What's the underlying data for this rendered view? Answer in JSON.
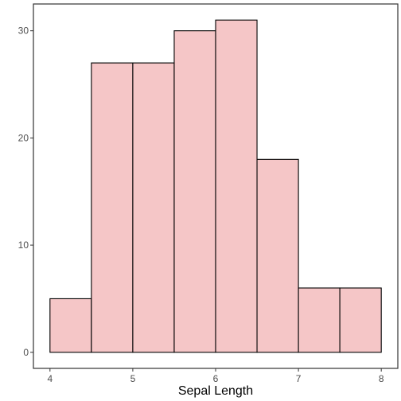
{
  "chart_data": {
    "type": "bar",
    "subtype": "histogram",
    "xlabel": "Sepal Length",
    "ylabel": "",
    "title": "",
    "bins": [
      {
        "x0": 4.0,
        "x1": 4.5,
        "count": 5
      },
      {
        "x0": 4.5,
        "x1": 5.0,
        "count": 27
      },
      {
        "x0": 5.0,
        "x1": 5.5,
        "count": 27
      },
      {
        "x0": 5.5,
        "x1": 6.0,
        "count": 30
      },
      {
        "x0": 6.0,
        "x1": 6.5,
        "count": 31
      },
      {
        "x0": 6.5,
        "x1": 7.0,
        "count": 18
      },
      {
        "x0": 7.0,
        "x1": 7.5,
        "count": 6
      },
      {
        "x0": 7.5,
        "x1": 8.0,
        "count": 6
      }
    ],
    "xticks": [
      "4",
      "5",
      "6",
      "7",
      "8"
    ],
    "yticks": [
      "0",
      "10",
      "20",
      "30"
    ],
    "xlim": [
      3.8,
      8.2
    ],
    "ylim": [
      -1.5,
      32.5
    ],
    "grid": false,
    "colors": {
      "bar_fill": "#f5c6c7",
      "bar_stroke": "#000000",
      "panel_border": "#333333",
      "tick_text": "#4d4d4d"
    }
  }
}
